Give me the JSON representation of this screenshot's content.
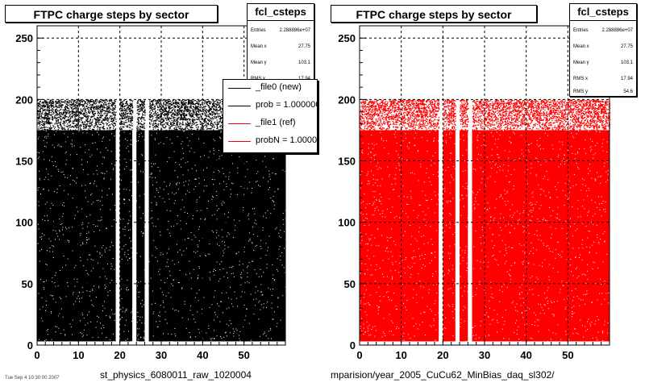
{
  "panels": [
    {
      "id": "left",
      "title": "FTPC charge steps by sector",
      "stats": {
        "name": "fcl_csteps",
        "rows": [
          {
            "key": "Entries",
            "value": "2.288896e+07"
          },
          {
            "key": "Mean x",
            "value": "27.75"
          },
          {
            "key": "Mean y",
            "value": "103.1"
          },
          {
            "key": "RMS x",
            "value": "17.94"
          }
        ]
      },
      "legend": [
        {
          "label": "_file0 (new)",
          "color": "#000000"
        },
        {
          "label": "prob = 1.000000",
          "color": "#000000"
        },
        {
          "label": "_file1 (ref)",
          "color": "#ff0000"
        },
        {
          "label": "probN = 1.000000",
          "color": "#ff0000"
        }
      ],
      "footer": "st_physics_6080011_raw_1020004",
      "fill_color": "#000000"
    },
    {
      "id": "right",
      "title": "FTPC charge steps by sector",
      "stats": {
        "name": "fcl_csteps",
        "rows": [
          {
            "key": "Entries",
            "value": "2.288896e+07"
          },
          {
            "key": "Mean x",
            "value": "27.75"
          },
          {
            "key": "Mean y",
            "value": "103.1"
          },
          {
            "key": "RMS x",
            "value": "17.94"
          },
          {
            "key": "RMS y",
            "value": "54.6"
          }
        ]
      },
      "footer": "mparision/year_2005_CuCu62_MinBias_daq_sl302/",
      "fill_color": "#ff0000"
    }
  ],
  "tiny_date": "Tue Sep  4 10:30:00 2007",
  "chart_data": [
    {
      "type": "scatter",
      "title": "FTPC charge steps by sector",
      "xlim": [
        0,
        60
      ],
      "ylim": [
        0,
        260
      ],
      "x_ticks": [
        0,
        10,
        20,
        30,
        40,
        50
      ],
      "y_ticks": [
        0,
        50,
        100,
        150,
        200,
        250
      ],
      "grid": true,
      "fill_color": "#000000",
      "dense_band": {
        "y_from": 3,
        "y_to": 175
      },
      "sparse_band": {
        "y_from": 175,
        "y_to": 200
      },
      "x_range": [
        0,
        60
      ],
      "empty_x_ranges": [
        [
          19,
          20
        ],
        [
          23,
          24
        ],
        [
          26,
          27
        ]
      ],
      "legend_position": "top-right"
    },
    {
      "type": "scatter",
      "title": "FTPC charge steps by sector",
      "xlim": [
        0,
        60
      ],
      "ylim": [
        0,
        260
      ],
      "x_ticks": [
        0,
        10,
        20,
        30,
        40,
        50
      ],
      "y_ticks": [
        0,
        50,
        100,
        150,
        200,
        250
      ],
      "grid": true,
      "fill_color": "#ff0000",
      "dense_band": {
        "y_from": 3,
        "y_to": 175
      },
      "sparse_band": {
        "y_from": 175,
        "y_to": 200
      },
      "x_range": [
        0,
        60
      ],
      "empty_x_ranges": [
        [
          19,
          20
        ],
        [
          23,
          24
        ],
        [
          26,
          27
        ]
      ]
    }
  ]
}
